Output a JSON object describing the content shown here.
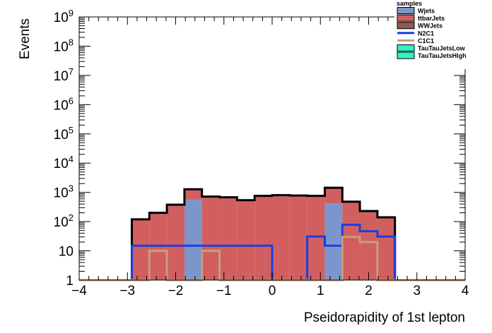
{
  "chart_data": {
    "type": "histogram-stack",
    "xlabel": "Pseidorapidity of 1st lepton",
    "ylabel": "Events",
    "xlim": [
      -4,
      4
    ],
    "ylim": [
      1,
      1000000000
    ],
    "log_y": true,
    "x_ticks": [
      "−4",
      "−3",
      "−2",
      "−1",
      "0",
      "1",
      "2",
      "3",
      "4"
    ],
    "y_ticks": [
      {
        "base": "1",
        "exp": ""
      },
      {
        "base": "10",
        "exp": ""
      },
      {
        "base": "10",
        "exp": "2"
      },
      {
        "base": "10",
        "exp": "3"
      },
      {
        "base": "10",
        "exp": "4"
      },
      {
        "base": "10",
        "exp": "5"
      },
      {
        "base": "10",
        "exp": "6"
      },
      {
        "base": "10",
        "exp": "7"
      },
      {
        "base": "10",
        "exp": "8"
      },
      {
        "base": "10",
        "exp": "9"
      }
    ],
    "bin_edges": [
      -4.0,
      -3.636,
      -3.273,
      -2.909,
      -2.545,
      -2.182,
      -1.818,
      -1.455,
      -1.091,
      -0.727,
      -0.364,
      0.0,
      0.364,
      0.727,
      1.091,
      1.455,
      1.818,
      2.182,
      2.545,
      2.909,
      3.273,
      3.636,
      4.0
    ],
    "legend_title": "samples",
    "series": [
      {
        "name": "Wjets",
        "kind": "stack",
        "color": "#7a96cc",
        "values": [
          0,
          0,
          0,
          0,
          0,
          0,
          560,
          0,
          0,
          0,
          0,
          0,
          0,
          0,
          420,
          0,
          0,
          0,
          0,
          0,
          0,
          0
        ]
      },
      {
        "name": "ttbarJets",
        "kind": "stack",
        "color": "#d15f5f",
        "values": [
          0,
          0,
          0,
          120,
          200,
          380,
          720,
          720,
          680,
          540,
          760,
          800,
          780,
          760,
          1020,
          480,
          230,
          140,
          0,
          0,
          0,
          0
        ]
      },
      {
        "name": "WWJets",
        "kind": "stack",
        "color": "#8c5a55",
        "values": [
          0,
          0,
          0,
          0,
          0,
          0,
          0,
          0,
          0,
          0,
          0,
          0,
          0,
          0,
          0,
          0,
          0,
          0,
          0,
          0,
          0,
          0
        ]
      },
      {
        "name": "N2C1",
        "kind": "line",
        "color": "#1a3de6",
        "values": [
          0,
          0,
          0,
          15,
          15,
          15,
          15,
          15,
          15,
          15,
          15,
          0,
          0,
          31,
          15,
          78,
          47,
          31,
          0,
          0,
          0,
          0
        ]
      },
      {
        "name": "C1C1",
        "kind": "line",
        "color": "#c89c7c",
        "values": [
          0,
          0,
          0,
          0,
          10,
          0,
          0,
          10,
          0,
          0,
          0,
          0,
          0,
          0,
          0,
          30,
          20,
          0,
          0,
          0,
          0,
          0
        ]
      },
      {
        "name": "TauTauJetsLow",
        "kind": "legend-only",
        "color": "#2ef2c8",
        "values": []
      },
      {
        "name": "TauTauJetsHigh",
        "kind": "legend-only",
        "color": "#2ef2c8",
        "values": []
      }
    ],
    "legend_position": "top-right",
    "grid": false
  }
}
